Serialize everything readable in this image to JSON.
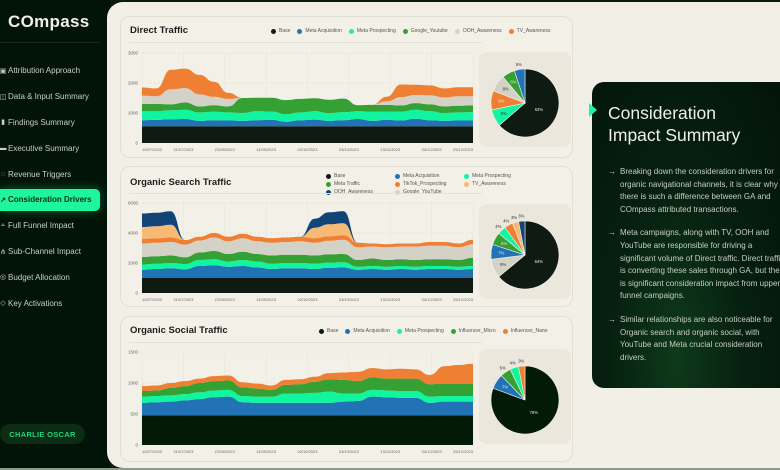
{
  "app": {
    "title": "COmpass"
  },
  "sidebar": {
    "items": [
      {
        "label": "Attribution Approach",
        "icon": "clipboard-icon",
        "active": false
      },
      {
        "label": "Data & Input Summary",
        "icon": "database-icon",
        "active": false
      },
      {
        "label": "Findings Summary",
        "icon": "bar-chart-icon",
        "active": false
      },
      {
        "label": "Executive Summary",
        "icon": "briefcase-icon",
        "active": false
      },
      {
        "label": "Revenue Triggers",
        "icon": "lightbulb-icon",
        "active": false
      },
      {
        "label": "Consideration Drivers",
        "icon": "trend-up-icon",
        "active": true
      },
      {
        "label": "Full Funnel Impact",
        "icon": "funnel-icon",
        "active": false
      },
      {
        "label": "Sub-Channel Impact",
        "icon": "network-icon",
        "active": false
      },
      {
        "label": "Budget Allocation",
        "icon": "coin-icon",
        "active": false
      },
      {
        "label": "Key Activations",
        "icon": "target-icon",
        "active": false
      }
    ],
    "user": "CHARLIE OSCAR"
  },
  "colors": {
    "Base": "#0f1a12",
    "Meta Acquisition": "#2273b5",
    "Meta Prospecting": "#12f5a0",
    "Google_Youtube": "#35a033",
    "OOH_Awareness": "#d4d1c6",
    "TV_Awareness": "#ef7f33",
    "Meta Traffic": "#35a033",
    "TikTok_Prospecting": "#ef7f33",
    "TV_Awareness_light": "#f7ba74",
    "OOH_Awareness_dark": "#114477",
    "Google_YouTube": "#d4d1c6",
    "Influencer_Micro": "#35a033",
    "Influencer_Nano": "#ef7f33"
  },
  "chart_data": [
    {
      "type": "area",
      "stacked": true,
      "title": "Direct Traffic",
      "x": [
        "10/07/2023",
        "31/07/2023",
        "21/08/2023",
        "11/09/2023",
        "02/10/2023",
        "23/10/2023",
        "13/11/2023",
        "04/12/2023",
        "25/12/2023"
      ],
      "yticks": [
        0,
        1000,
        2000,
        3000
      ],
      "ylim": [
        0,
        3000
      ],
      "grid": true,
      "legend_position": "top-right",
      "series": [
        {
          "name": "Base",
          "color": "#0f1a12",
          "values": [
            560,
            560,
            560,
            560,
            560,
            560,
            560,
            560,
            560,
            560,
            560,
            560,
            560,
            560,
            560,
            560,
            560,
            560,
            560,
            560,
            560,
            560,
            560,
            560
          ]
        },
        {
          "name": "Meta Acquisition",
          "color": "#2273b5",
          "values": [
            200,
            210,
            230,
            240,
            180,
            200,
            190,
            180,
            200,
            210,
            150,
            200,
            220,
            180,
            200,
            240,
            180,
            210,
            190,
            250,
            200,
            180,
            190,
            200
          ]
        },
        {
          "name": "Meta Prospecting",
          "color": "#12f5a0",
          "values": [
            300,
            290,
            300,
            310,
            280,
            280,
            270,
            260,
            300,
            280,
            250,
            260,
            280,
            260,
            270,
            260,
            300,
            280,
            300,
            300,
            300,
            260,
            270,
            270
          ]
        },
        {
          "name": "Google_Youtube",
          "color": "#35a033",
          "values": [
            250,
            240,
            200,
            240,
            200,
            220,
            200,
            500,
            450,
            460,
            470,
            450,
            430,
            440,
            450,
            200,
            230,
            220,
            200,
            220,
            230,
            220,
            220,
            230
          ]
        },
        {
          "name": "OOH_Awareness",
          "color": "#d4d1c6",
          "values": [
            270,
            260,
            500,
            480,
            400,
            280,
            250,
            0,
            0,
            0,
            0,
            0,
            0,
            0,
            0,
            0,
            0,
            120,
            280,
            270,
            300,
            300,
            320,
            300
          ]
        },
        {
          "name": "TV_Awareness",
          "color": "#ef7f33",
          "values": [
            270,
            260,
            650,
            650,
            650,
            500,
            200,
            0,
            0,
            0,
            0,
            0,
            0,
            0,
            0,
            0,
            0,
            150,
            420,
            340,
            330,
            300,
            300,
            300
          ]
        }
      ],
      "pie": [
        {
          "name": "Base",
          "value": 63,
          "label": "63%"
        },
        {
          "name": "Meta Prospecting",
          "value": 8,
          "label": "8%"
        },
        {
          "name": "TV_Awareness",
          "value": 9,
          "label": "9%"
        },
        {
          "name": "OOH_Awareness",
          "value": 8,
          "label": "8%"
        },
        {
          "name": "Google_Youtube",
          "value": 6,
          "label": "6%"
        },
        {
          "name": "Meta Acquisition",
          "value": 5,
          "label": "5%"
        }
      ]
    },
    {
      "type": "area",
      "stacked": true,
      "title": "Organic Search Traffic",
      "x": [
        "10/07/2023",
        "31/07/2023",
        "21/08/2023",
        "11/09/2023",
        "02/10/2023",
        "23/10/2023",
        "13/11/2023",
        "04/12/2023",
        "25/12/2023"
      ],
      "yticks": [
        0,
        2000,
        4000,
        6000
      ],
      "ylim": [
        0,
        6000
      ],
      "grid": true,
      "legend_position": "top-right",
      "legend": [
        "Base",
        "Meta Acquisition",
        "Meta Prospecting",
        "Meta Traffic",
        "TikTok_Prospecting",
        "TV_Awareness",
        "OOH_Awareness",
        "Google_YouTube"
      ],
      "series": [
        {
          "name": "Base",
          "color": "#0f1a12",
          "values": [
            1000,
            1000,
            1000,
            1000,
            1000,
            1000,
            1000,
            1000,
            1000,
            1000,
            1000,
            1000,
            1000,
            1000,
            1000,
            1000,
            1000,
            1000,
            1000,
            1000,
            1000,
            1000,
            1000,
            1000
          ]
        },
        {
          "name": "Meta Acquisition",
          "color": "#2273b5",
          "values": [
            550,
            600,
            650,
            580,
            800,
            850,
            750,
            800,
            700,
            600,
            650,
            650,
            600,
            680,
            700,
            550,
            600,
            550,
            600,
            550,
            600,
            600,
            550,
            600
          ]
        },
        {
          "name": "Meta Prospecting",
          "color": "#12f5a0",
          "values": [
            350,
            350,
            350,
            350,
            400,
            400,
            350,
            400,
            400,
            350,
            350,
            350,
            350,
            350,
            350,
            200,
            200,
            200,
            200,
            200,
            200,
            200,
            200,
            200
          ]
        },
        {
          "name": "Meta Traffic",
          "color": "#35a033",
          "values": [
            500,
            500,
            500,
            450,
            500,
            550,
            500,
            550,
            500,
            550,
            550,
            550,
            550,
            550,
            550,
            450,
            500,
            450,
            450,
            450,
            450,
            450,
            450,
            550
          ]
        },
        {
          "name": "Google_YouTube",
          "color": "#d4d1c6",
          "values": [
            900,
            900,
            900,
            850,
            800,
            900,
            850,
            900,
            850,
            850,
            850,
            900,
            850,
            900,
            950,
            850,
            800,
            850,
            850,
            900,
            900,
            900,
            850,
            900
          ]
        },
        {
          "name": "TikTok_Prospecting",
          "color": "#ef7f33",
          "values": [
            300,
            300,
            300,
            300,
            250,
            300,
            300,
            300,
            300,
            300,
            300,
            300,
            300,
            300,
            300,
            300,
            200,
            200,
            200,
            200,
            250,
            250,
            250,
            300
          ]
        },
        {
          "name": "TV_Awareness",
          "color": "#f7ba74",
          "values": [
            800,
            800,
            850,
            0,
            0,
            0,
            0,
            0,
            0,
            0,
            0,
            0,
            700,
            800,
            800,
            0,
            0,
            0,
            0,
            0,
            0,
            0,
            0,
            0
          ]
        },
        {
          "name": "OOH_Awareness",
          "color": "#114477",
          "values": [
            900,
            900,
            900,
            0,
            0,
            0,
            0,
            0,
            0,
            0,
            0,
            0,
            600,
            800,
            800,
            0,
            0,
            0,
            0,
            0,
            0,
            0,
            0,
            0
          ]
        }
      ],
      "pie": [
        {
          "name": "Base",
          "value": 64,
          "label": "64%"
        },
        {
          "name": "Google_YouTube",
          "value": 9,
          "label": "9%"
        },
        {
          "name": "Meta Acquisition",
          "value": 7,
          "label": "7%"
        },
        {
          "name": "Meta Traffic",
          "value": 6,
          "label": "6%"
        },
        {
          "name": "Meta Prospecting",
          "value": 4,
          "label": "4%"
        },
        {
          "name": "TikTok_Prospecting",
          "value": 4,
          "label": "4%"
        },
        {
          "name": "TV_Awareness",
          "value": 3,
          "label": "3%"
        },
        {
          "name": "OOH_Awareness",
          "value": 3,
          "label": "3%"
        }
      ]
    },
    {
      "type": "area",
      "stacked": true,
      "title": "Organic Social Traffic",
      "x": [
        "10/07/2023",
        "31/07/2023",
        "21/08/2023",
        "11/09/2023",
        "02/10/2023",
        "23/10/2023",
        "13/11/2023",
        "04/12/2023",
        "25/12/2023"
      ],
      "yticks": [
        0,
        500,
        1000,
        1500
      ],
      "ylim": [
        0,
        1500
      ],
      "grid": true,
      "legend_position": "top-right",
      "series": [
        {
          "name": "Base",
          "color": "#021a06",
          "values": [
            480,
            480,
            480,
            480,
            480,
            480,
            480,
            480,
            480,
            480,
            480,
            480,
            480,
            480,
            480,
            480,
            480,
            480,
            480,
            480,
            480,
            480,
            480,
            480
          ]
        },
        {
          "name": "Meta Acquisition",
          "color": "#2273b5",
          "values": [
            200,
            210,
            220,
            240,
            260,
            290,
            300,
            210,
            200,
            200,
            200,
            200,
            200,
            200,
            220,
            230,
            300,
            290,
            280,
            280,
            200,
            220,
            220,
            220
          ]
        },
        {
          "name": "Meta Prospecting",
          "color": "#12f5a0",
          "values": [
            100,
            100,
            100,
            100,
            110,
            110,
            110,
            100,
            100,
            100,
            150,
            150,
            160,
            180,
            130,
            120,
            110,
            110,
            110,
            110,
            100,
            90,
            90,
            90
          ]
        },
        {
          "name": "Influencer_Micro",
          "color": "#35a033",
          "values": [
            90,
            90,
            120,
            130,
            150,
            150,
            150,
            140,
            130,
            110,
            140,
            150,
            180,
            200,
            220,
            200,
            200,
            190,
            200,
            200,
            200,
            200,
            200,
            200
          ]
        },
        {
          "name": "Influencer_Nano",
          "color": "#ef7f33",
          "values": [
            80,
            80,
            80,
            80,
            70,
            80,
            80,
            80,
            80,
            70,
            80,
            80,
            80,
            100,
            120,
            150,
            150,
            150,
            160,
            150,
            150,
            280,
            300,
            320
          ]
        }
      ],
      "pie": [
        {
          "name": "Base",
          "value": 79,
          "label": "79%"
        },
        {
          "name": "Meta Acquisition",
          "value": 7,
          "label": "7%"
        },
        {
          "name": "Influencer_Micro",
          "value": 5,
          "label": "5%"
        },
        {
          "name": "Meta Prospecting",
          "value": 4,
          "label": "4%"
        },
        {
          "name": "Influencer_Nano",
          "value": 3,
          "label": "3%"
        }
      ]
    }
  ],
  "summary": {
    "title_line1": "Consideration",
    "title_line2": "Impact Summary",
    "bullets": [
      "Breaking down the consideration drivers for organic navigational channels, it is clear why there is such a difference between GA and COmpass attributed transactions.",
      "Meta campaigns, along with TV, OOH and YouTube are responsible for driving a significant volume of Direct traffic. Direct traffic is converting these sales through GA, but there is significant consideration impact from upper funnel campaigns.",
      "Similar relationships are also noticeable for Organic search and organic social, with YouTube and Meta crucial consideration drivers."
    ],
    "arrow": "→"
  }
}
